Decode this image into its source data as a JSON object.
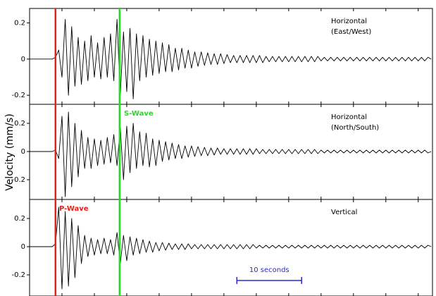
{
  "chart_data": {
    "type": "line",
    "y_label": "Velocity (mm/s)",
    "xlim": [
      0,
      62.2
    ],
    "xticks": [
      0,
      5,
      10,
      15,
      20,
      25,
      30,
      35,
      40,
      45,
      50,
      55,
      60
    ],
    "x": [
      0,
      0.5,
      1,
      1.5,
      2,
      2.5,
      3,
      3.5,
      4,
      4.5,
      5,
      5.5,
      6,
      6.5,
      7,
      7.5,
      8,
      8.5,
      9,
      9.5,
      10,
      10.5,
      11,
      11.5,
      12,
      12.5,
      13,
      13.5,
      14,
      14.5,
      15,
      15.5,
      16,
      16.5,
      17,
      17.5,
      18,
      18.5,
      19,
      19.5,
      20,
      20.5,
      21,
      21.5,
      22,
      22.5,
      23,
      23.5,
      24,
      24.5,
      25,
      25.5,
      26,
      26.5,
      27,
      27.5,
      28,
      28.5,
      29,
      29.5,
      30,
      30.5,
      31,
      31.5,
      32,
      32.5,
      33,
      33.5,
      34,
      34.5,
      35,
      35.5,
      36,
      36.5,
      37,
      37.5,
      38,
      38.5,
      39,
      39.5,
      40,
      40.5,
      41,
      41.5,
      42,
      42.5,
      43,
      43.5,
      44,
      44.5,
      45,
      45.5,
      46,
      46.5,
      47,
      47.5,
      48,
      48.5,
      49,
      49.5,
      50,
      50.5,
      51,
      51.5,
      52,
      52.5,
      53,
      53.5,
      54,
      54.5,
      55,
      55.5,
      56,
      56.5,
      57,
      57.5,
      58,
      58.5,
      59,
      59.5,
      60,
      60.5,
      61,
      61.5,
      62
    ],
    "series": [
      {
        "name": [
          "Horizontal",
          "(East/West)"
        ],
        "color": "#000000",
        "ylim": [
          -0.25,
          0.28
        ],
        "yticks": [
          -0.2,
          0,
          0.2
        ],
        "values": [
          0,
          0,
          0,
          0,
          0,
          0,
          0,
          0,
          0.01,
          0.05,
          -0.1,
          0.22,
          -0.2,
          0.18,
          -0.15,
          0.12,
          -0.14,
          0.1,
          -0.12,
          0.13,
          -0.1,
          0.09,
          -0.11,
          0.12,
          -0.1,
          0.14,
          -0.12,
          0.22,
          -0.2,
          0.15,
          -0.18,
          0.17,
          -0.22,
          0.14,
          -0.12,
          0.13,
          -0.1,
          0.11,
          -0.09,
          0.1,
          -0.08,
          0.09,
          -0.07,
          0.08,
          -0.07,
          0.06,
          -0.06,
          0.06,
          -0.05,
          0.05,
          -0.05,
          0.04,
          -0.04,
          0.04,
          -0.035,
          0.035,
          -0.03,
          0.03,
          -0.03,
          0.03,
          -0.025,
          0.025,
          -0.02,
          0.02,
          -0.02,
          0.02,
          -0.02,
          0.02,
          -0.02,
          0.02,
          -0.02,
          0.02,
          -0.02,
          0.015,
          -0.015,
          0.015,
          -0.015,
          0.015,
          -0.015,
          0.015,
          -0.015,
          0.015,
          -0.015,
          0.015,
          -0.015,
          0.015,
          -0.015,
          0.015,
          -0.015,
          0.015,
          -0.01,
          0.01,
          -0.01,
          0.01,
          -0.01,
          0.01,
          -0.01,
          0.01,
          -0.01,
          0.01,
          -0.01,
          0.01,
          -0.01,
          0.01,
          -0.01,
          0.01,
          -0.01,
          0.01,
          -0.01,
          0.01,
          -0.01,
          0.01,
          -0.01,
          0.01,
          -0.01,
          0.01,
          -0.01,
          0.01,
          -0.01,
          0.01,
          -0.01,
          0.01,
          -0.01,
          0.01,
          0
        ]
      },
      {
        "name": [
          "Horizontal",
          "(North/South)"
        ],
        "color": "#000000",
        "ylim": [
          -0.34,
          0.335
        ],
        "yticks": [
          -0.2,
          0,
          0.2
        ],
        "values": [
          0,
          0,
          0,
          0,
          0,
          0,
          0,
          0,
          0.01,
          -0.05,
          0.25,
          -0.32,
          0.28,
          -0.25,
          0.2,
          -0.18,
          0.15,
          -0.12,
          0.1,
          -0.12,
          0.09,
          -0.1,
          0.08,
          -0.09,
          0.1,
          -0.08,
          0.12,
          -0.1,
          0.17,
          -0.2,
          0.18,
          -0.15,
          0.2,
          -0.12,
          0.14,
          -0.1,
          0.13,
          -0.11,
          0.09,
          -0.1,
          0.08,
          -0.07,
          0.07,
          -0.06,
          0.06,
          -0.05,
          0.05,
          -0.05,
          0.04,
          -0.04,
          0.04,
          -0.035,
          0.035,
          -0.03,
          0.03,
          -0.03,
          0.025,
          -0.025,
          0.025,
          -0.02,
          0.02,
          -0.02,
          0.02,
          -0.02,
          0.02,
          -0.02,
          0.02,
          -0.02,
          0.02,
          -0.02,
          0.02,
          -0.015,
          0.015,
          -0.015,
          0.015,
          -0.015,
          0.015,
          -0.015,
          0.015,
          -0.015,
          0.015,
          -0.015,
          0.015,
          -0.015,
          0.015,
          -0.015,
          0.015,
          -0.015,
          0.015,
          -0.015,
          0.01,
          -0.01,
          0.01,
          -0.01,
          0.01,
          -0.01,
          0.01,
          -0.01,
          0.01,
          -0.01,
          0.01,
          -0.01,
          0.01,
          -0.01,
          0.01,
          -0.01,
          0.01,
          -0.01,
          0.01,
          -0.01,
          0.01,
          -0.01,
          0.01,
          -0.01,
          0.01,
          -0.01,
          0.01,
          -0.01,
          0.01,
          -0.01,
          0.01,
          -0.01,
          0.01,
          -0.01,
          0
        ]
      },
      {
        "name": [
          "Vertical"
        ],
        "color": "#000000",
        "ylim": [
          -0.35,
          0.335
        ],
        "yticks": [
          -0.2,
          0,
          0.2
        ],
        "values": [
          0,
          0,
          0,
          0,
          0,
          0,
          0,
          0,
          0.02,
          0.28,
          -0.3,
          0.25,
          -0.28,
          0.2,
          -0.22,
          0.15,
          -0.12,
          0.08,
          -0.07,
          0.06,
          -0.06,
          0.05,
          -0.05,
          0.06,
          -0.05,
          0.05,
          -0.06,
          0.1,
          -0.12,
          0.08,
          -0.1,
          0.07,
          -0.06,
          0.06,
          -0.05,
          0.05,
          -0.04,
          0.04,
          -0.04,
          0.03,
          -0.03,
          0.03,
          -0.025,
          0.025,
          -0.02,
          0.02,
          -0.02,
          0.02,
          -0.02,
          0.02,
          -0.015,
          0.015,
          -0.015,
          0.015,
          -0.015,
          0.015,
          -0.015,
          0.015,
          -0.015,
          0.015,
          -0.015,
          0.015,
          -0.015,
          0.015,
          -0.015,
          0.015,
          -0.015,
          0.015,
          -0.015,
          0.015,
          -0.01,
          0.01,
          -0.01,
          0.01,
          -0.01,
          0.01,
          -0.01,
          0.01,
          -0.01,
          0.01,
          -0.01,
          0.01,
          -0.01,
          0.01,
          -0.01,
          0.01,
          -0.01,
          0.01,
          -0.01,
          0.01,
          -0.01,
          0.01,
          -0.01,
          0.01,
          -0.01,
          0.01,
          -0.01,
          0.01,
          -0.01,
          0.01,
          -0.01,
          0.01,
          -0.01,
          0.01,
          -0.01,
          0.01,
          -0.01,
          0.01,
          -0.01,
          0.01,
          -0.01,
          0.01,
          -0.01,
          0.01,
          -0.01,
          0.01,
          -0.01,
          0.01,
          -0.01,
          0.01,
          -0.01,
          0.01,
          -0.01,
          0.01,
          0
        ]
      }
    ],
    "markers": [
      {
        "label": "P-Wave",
        "x": 4,
        "color": "#e8201c"
      },
      {
        "label": "S-Wave",
        "x": 13.9,
        "color": "#22dd22"
      }
    ],
    "scale_bar": {
      "label": "10 seconds",
      "start": 32,
      "end": 42,
      "color": "#2a2ad0"
    }
  }
}
